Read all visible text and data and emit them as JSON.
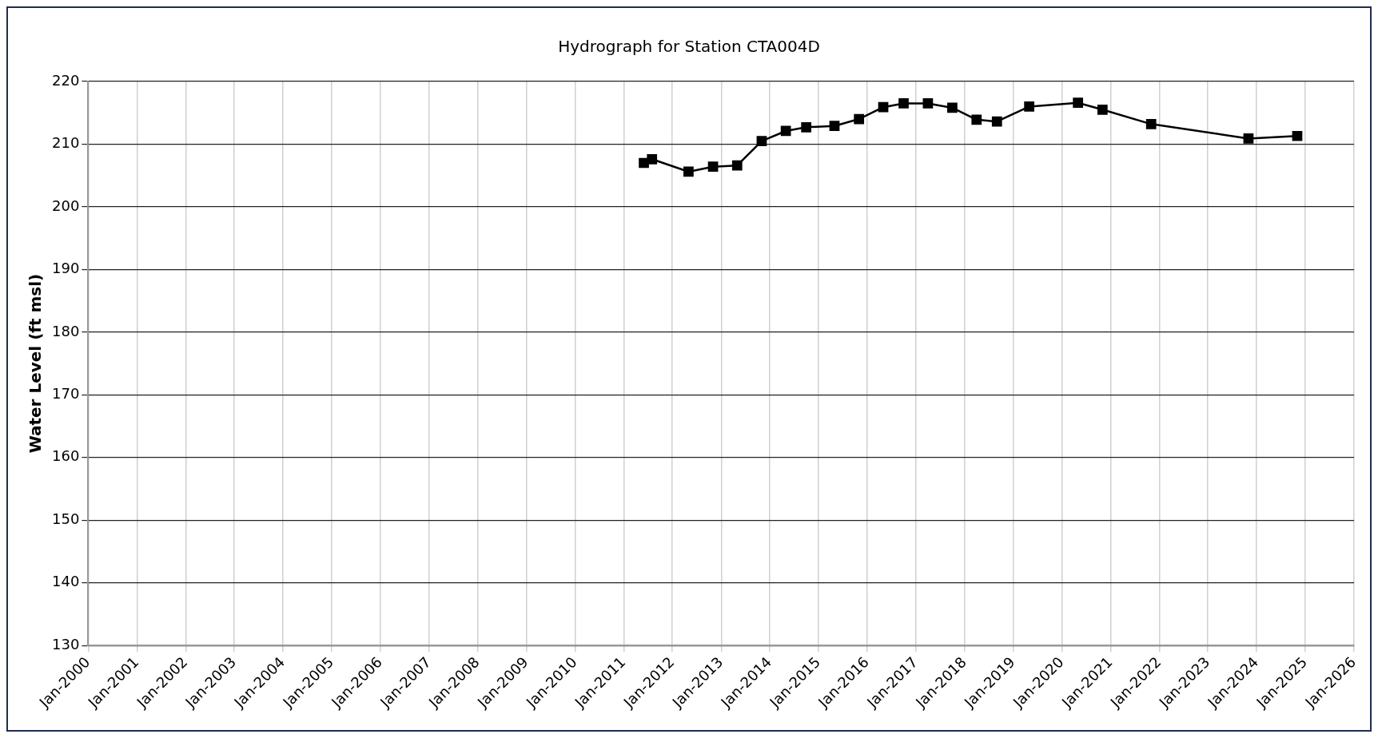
{
  "chart_data": {
    "type": "line",
    "title": "Hydrograph for Station CTA004D",
    "ylabel": "Water Level (ft msl)",
    "x": [
      "2011-06",
      "2011-08",
      "2012-05",
      "2012-11",
      "2013-05",
      "2013-11",
      "2014-05",
      "2014-10",
      "2015-05",
      "2015-11",
      "2016-05",
      "2016-10",
      "2017-04",
      "2017-10",
      "2018-04",
      "2018-09",
      "2019-05",
      "2020-05",
      "2020-11",
      "2021-11",
      "2023-11",
      "2024-11"
    ],
    "series": [
      {
        "color": "#000000",
        "values": [
          207.0,
          207.6,
          205.6,
          206.4,
          206.6,
          210.5,
          212.1,
          212.7,
          212.9,
          214.0,
          215.9,
          216.5,
          216.5,
          215.8,
          213.9,
          213.6,
          216.0,
          216.6,
          215.5,
          213.2,
          210.9,
          211.3
        ]
      }
    ],
    "xlim": [
      "2000-01",
      "2026-01"
    ],
    "xticks": [
      {
        "value": "2000-01",
        "label": "Jan-2000"
      },
      {
        "value": "2001-01",
        "label": "Jan-2001"
      },
      {
        "value": "2002-01",
        "label": "Jan-2002"
      },
      {
        "value": "2003-01",
        "label": "Jan-2003"
      },
      {
        "value": "2004-01",
        "label": "Jan-2004"
      },
      {
        "value": "2005-01",
        "label": "Jan-2005"
      },
      {
        "value": "2006-01",
        "label": "Jan-2006"
      },
      {
        "value": "2007-01",
        "label": "Jan-2007"
      },
      {
        "value": "2008-01",
        "label": "Jan-2008"
      },
      {
        "value": "2009-01",
        "label": "Jan-2009"
      },
      {
        "value": "2010-01",
        "label": "Jan-2010"
      },
      {
        "value": "2011-01",
        "label": "Jan-2011"
      },
      {
        "value": "2012-01",
        "label": "Jan-2012"
      },
      {
        "value": "2013-01",
        "label": "Jan-2013"
      },
      {
        "value": "2014-01",
        "label": "Jan-2014"
      },
      {
        "value": "2015-01",
        "label": "Jan-2015"
      },
      {
        "value": "2016-01",
        "label": "Jan-2016"
      },
      {
        "value": "2017-01",
        "label": "Jan-2017"
      },
      {
        "value": "2018-01",
        "label": "Jan-2018"
      },
      {
        "value": "2019-01",
        "label": "Jan-2019"
      },
      {
        "value": "2020-01",
        "label": "Jan-2020"
      },
      {
        "value": "2021-01",
        "label": "Jan-2021"
      },
      {
        "value": "2022-01",
        "label": "Jan-2022"
      },
      {
        "value": "2023-01",
        "label": "Jan-2023"
      },
      {
        "value": "2024-01",
        "label": "Jan-2024"
      },
      {
        "value": "2025-01",
        "label": "Jan-2025"
      },
      {
        "value": "2026-01",
        "label": "Jan-2026"
      }
    ],
    "ylim": [
      130,
      220
    ],
    "yticks": [
      130,
      140,
      150,
      160,
      170,
      180,
      190,
      200,
      210,
      220
    ],
    "grid": true,
    "legend": false,
    "marker": "square",
    "line_style": "solid"
  }
}
